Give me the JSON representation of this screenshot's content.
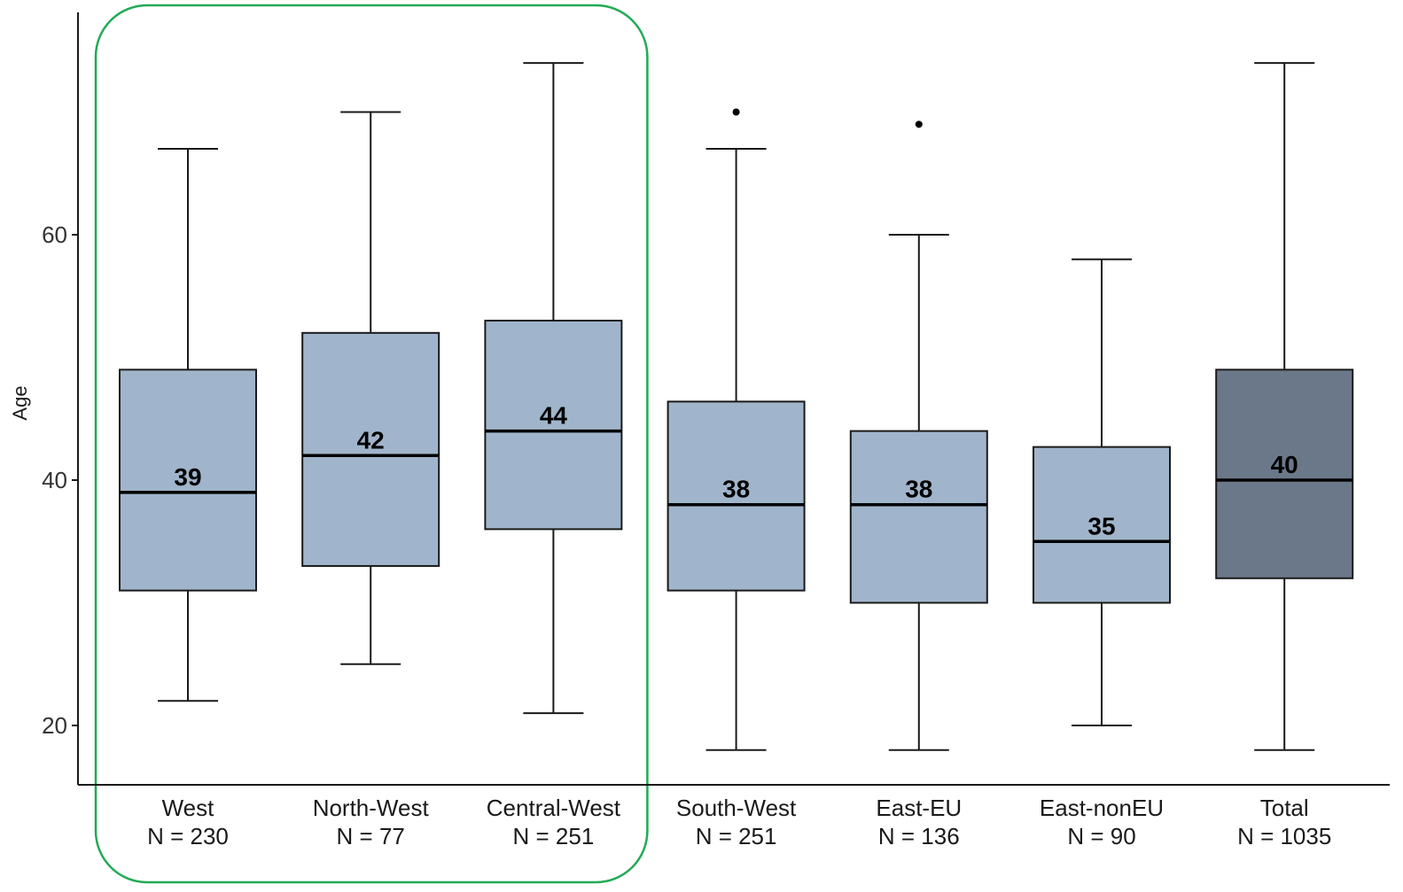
{
  "chart_data": {
    "type": "boxplot",
    "title": "",
    "xlabel": "",
    "ylabel": "Age",
    "ylim": [
      15.2,
      78
    ],
    "yticks": [
      20,
      40,
      60
    ],
    "grid": false,
    "legend": "none",
    "colors": {
      "box_fill": "#a0b5cb",
      "total_fill": "#6b7889",
      "stroke": "#1a1a1a",
      "highlight_frame": "#22aa55"
    },
    "highlight": {
      "group_indices": [
        0,
        1,
        2
      ]
    },
    "categories": [
      {
        "name": "West",
        "n_label": "N = 230",
        "whisker_low": 22,
        "q1": 31,
        "median": 39,
        "q3": 49,
        "whisker_high": 67,
        "outliers": [],
        "median_label": "39"
      },
      {
        "name": "North-West",
        "n_label": "N = 77",
        "whisker_low": 25,
        "q1": 33,
        "median": 42,
        "q3": 52,
        "whisker_high": 70,
        "outliers": [],
        "median_label": "42"
      },
      {
        "name": "Central-West",
        "n_label": "N = 251",
        "whisker_low": 21,
        "q1": 36,
        "median": 44,
        "q3": 53,
        "whisker_high": 74,
        "outliers": [],
        "median_label": "44"
      },
      {
        "name": "South-West",
        "n_label": "N = 251",
        "whisker_low": 18,
        "q1": 31,
        "median": 38,
        "q3": 46.4,
        "whisker_high": 67,
        "outliers": [
          70
        ],
        "median_label": "38"
      },
      {
        "name": "East-EU",
        "n_label": "N = 136",
        "whisker_low": 18,
        "q1": 30,
        "median": 38,
        "q3": 44,
        "whisker_high": 60,
        "outliers": [
          69
        ],
        "median_label": "38"
      },
      {
        "name": "East-nonEU",
        "n_label": "N = 90",
        "whisker_low": 20,
        "q1": 30,
        "median": 35,
        "q3": 42.7,
        "whisker_high": 58,
        "outliers": [],
        "median_label": "35"
      },
      {
        "name": "Total",
        "n_label": "N = 1035",
        "whisker_low": 18,
        "q1": 32,
        "median": 40,
        "q3": 49,
        "whisker_high": 74,
        "outliers": [],
        "median_label": "40"
      }
    ]
  }
}
